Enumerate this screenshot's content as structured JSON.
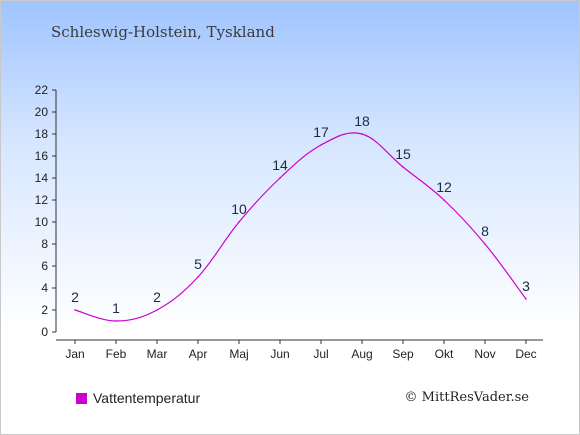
{
  "title": "Schleswig-Holstein, Tyskland",
  "credit": "© MittResVader.se",
  "legend": {
    "label": "Vattentemperatur",
    "color": "#cc00cc"
  },
  "chart_data": {
    "type": "line",
    "categories": [
      "Jan",
      "Feb",
      "Mar",
      "Apr",
      "Maj",
      "Jun",
      "Jul",
      "Aug",
      "Sep",
      "Okt",
      "Nov",
      "Dec"
    ],
    "series": [
      {
        "name": "Vattentemperatur",
        "values": [
          2,
          1,
          2,
          5,
          10,
          14,
          17,
          18,
          15,
          12,
          8,
          3
        ],
        "color": "#cc00cc"
      }
    ],
    "yticks": [
      0,
      2,
      4,
      6,
      8,
      10,
      12,
      14,
      16,
      18,
      20,
      22
    ],
    "ylim": [
      0,
      22
    ],
    "grid": false,
    "legend_position": "bottom-left"
  }
}
